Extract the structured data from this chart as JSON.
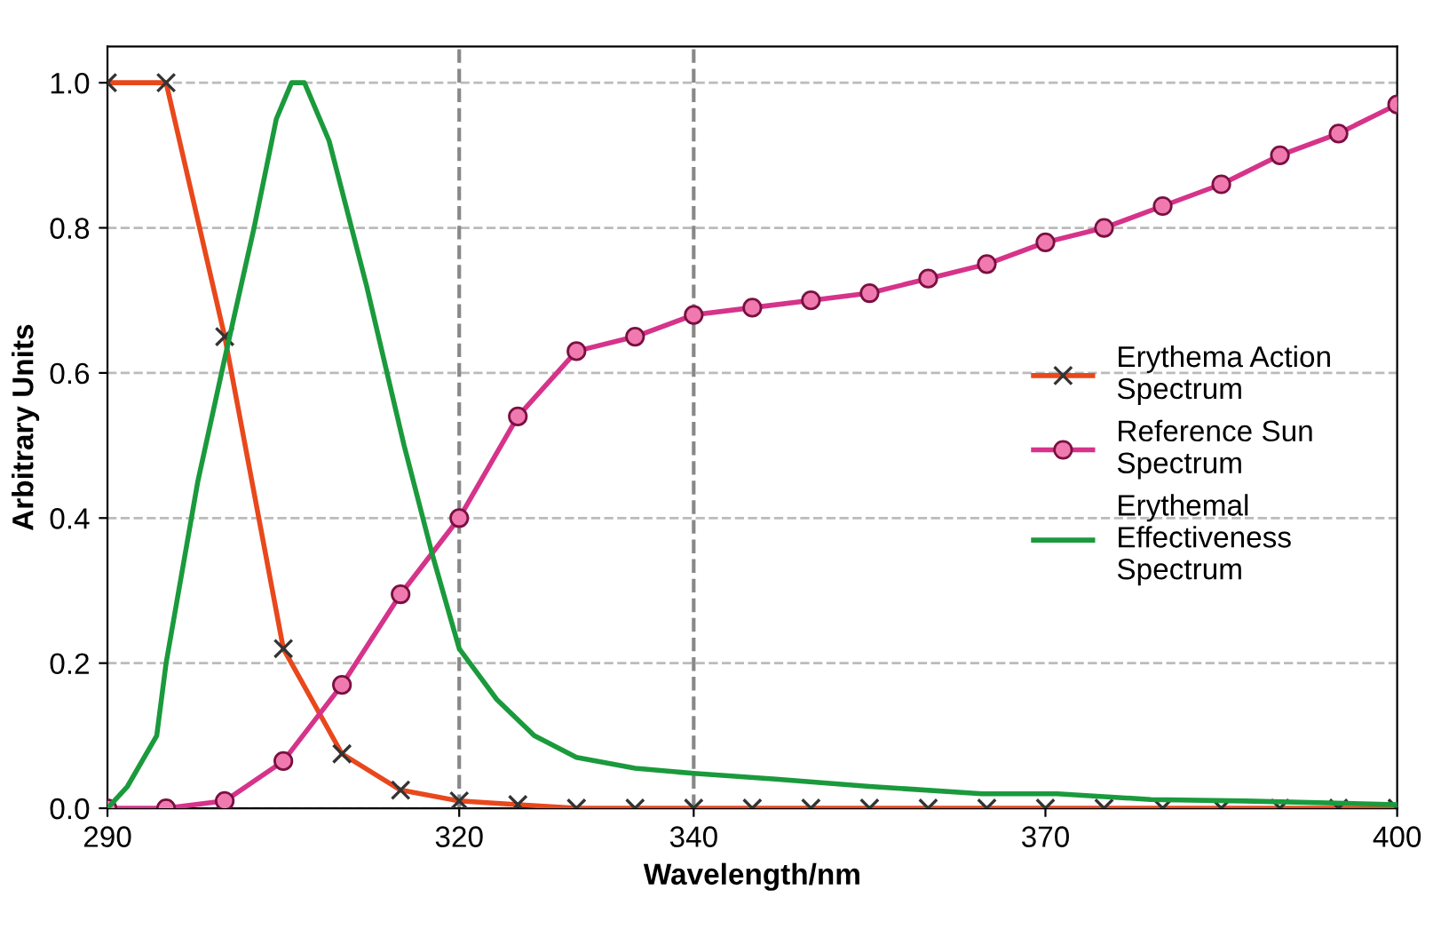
{
  "chart_data": {
    "type": "line",
    "xlabel": "Wavelength/nm",
    "ylabel": "Arbitrary Units",
    "xlim": [
      290,
      400
    ],
    "xticks": [
      290,
      320,
      340,
      370,
      400
    ],
    "ylim": [
      0,
      1.05
    ],
    "yticks": [
      {
        "value": 0,
        "label": "0.0"
      },
      {
        "value": 0.2,
        "label": "0.2"
      },
      {
        "value": 0.4,
        "label": "0.4"
      },
      {
        "value": 0.6,
        "label": "0.6"
      },
      {
        "value": 0.8,
        "label": "0.8"
      },
      {
        "value": 1,
        "label": "1.0"
      }
    ],
    "grid": "y",
    "legend": "right",
    "ref_lines": [
      {
        "axis": "x",
        "value": 320,
        "label": null,
        "line_style": "dashed"
      },
      {
        "axis": "x",
        "value": 340,
        "label": null,
        "line_style": "dashed"
      }
    ],
    "series": [
      {
        "name": "Erythema Action\nSpectrum",
        "color": "#e8481c",
        "marker": "cross",
        "x": [
          290,
          295,
          300,
          305,
          310,
          315,
          320,
          325,
          330,
          335,
          340,
          345,
          350,
          355,
          360,
          365,
          370,
          375,
          380,
          385,
          390,
          395,
          400
        ],
        "values": [
          1.0,
          1.0,
          0.65,
          0.22,
          0.075,
          0.025,
          0.01,
          0.005,
          0.0,
          0.0,
          0.0,
          0.0,
          0.0,
          0.0,
          0.0,
          0.0,
          0.0,
          0.0,
          0.0,
          0.0,
          0.0,
          0.0,
          0.0
        ]
      },
      {
        "name": "Reference Sun\nSpectrum",
        "color": "#d6338a",
        "marker": "circle",
        "x": [
          290,
          295,
          300,
          305,
          310,
          315,
          320,
          325,
          330,
          335,
          340,
          345,
          350,
          355,
          360,
          365,
          370,
          375,
          380,
          385,
          390,
          395,
          400
        ],
        "values": [
          0.0,
          0.0,
          0.01,
          0.065,
          0.17,
          0.295,
          0.4,
          0.54,
          0.63,
          0.65,
          0.68,
          0.69,
          0.7,
          0.71,
          0.73,
          0.75,
          0.78,
          0.8,
          0.83,
          0.86,
          0.9,
          0.93,
          0.97
        ]
      },
      {
        "name": "Erythemal\nEffectiveness\nSpectrum",
        "color": "#1a9a3c",
        "marker": "none",
        "x": [
          290,
          291.7,
          294.2,
          295,
          297.7,
          300,
          302.5,
          304.4,
          305.7,
          306.8,
          308.9,
          312.1,
          315.3,
          317.7,
          320,
          323.2,
          326.4,
          330,
          335,
          340,
          347,
          355,
          364.6,
          371,
          379,
          387,
          400
        ],
        "values": [
          0.0,
          0.03,
          0.1,
          0.2,
          0.45,
          0.62,
          0.8,
          0.95,
          1.0,
          1.0,
          0.92,
          0.72,
          0.5,
          0.35,
          0.22,
          0.15,
          0.1,
          0.07,
          0.055,
          0.048,
          0.04,
          0.03,
          0.02,
          0.02,
          0.012,
          0.01,
          0.005
        ]
      }
    ]
  }
}
